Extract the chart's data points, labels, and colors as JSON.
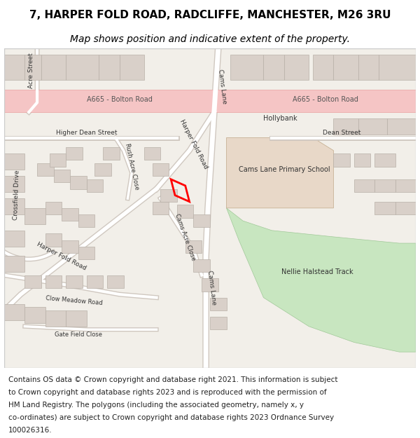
{
  "title_line1": "7, HARPER FOLD ROAD, RADCLIFFE, MANCHESTER, M26 3RU",
  "title_line2": "Map shows position and indicative extent of the property.",
  "footer_lines": [
    "Contains OS data © Crown copyright and database right 2021. This information is subject",
    "to Crown copyright and database rights 2023 and is reproduced with the permission of",
    "HM Land Registry. The polygons (including the associated geometry, namely x, y",
    "co-ordinates) are subject to Crown copyright and database rights 2023 Ordnance Survey",
    "100026316."
  ],
  "map_bg": "#f2efe9",
  "road_pink": "#f5c5c5",
  "road_pink_border": "#e8a0a0",
  "green_area": "#c8e6c0",
  "school_area": "#e8d8c8",
  "building_fill": "#d9d0c9",
  "building_stroke": "#b8b0a8",
  "road_stroke": "#d0c8c0",
  "plot_stroke": "#ff0000",
  "title_color": "#000000",
  "footer_color": "#222222",
  "fig_bg": "#ffffff",
  "map_border": "#cccccc",
  "title_fontsize": 11,
  "subtitle_fontsize": 10,
  "footer_fontsize": 7.5,
  "label_fontsize": 7
}
